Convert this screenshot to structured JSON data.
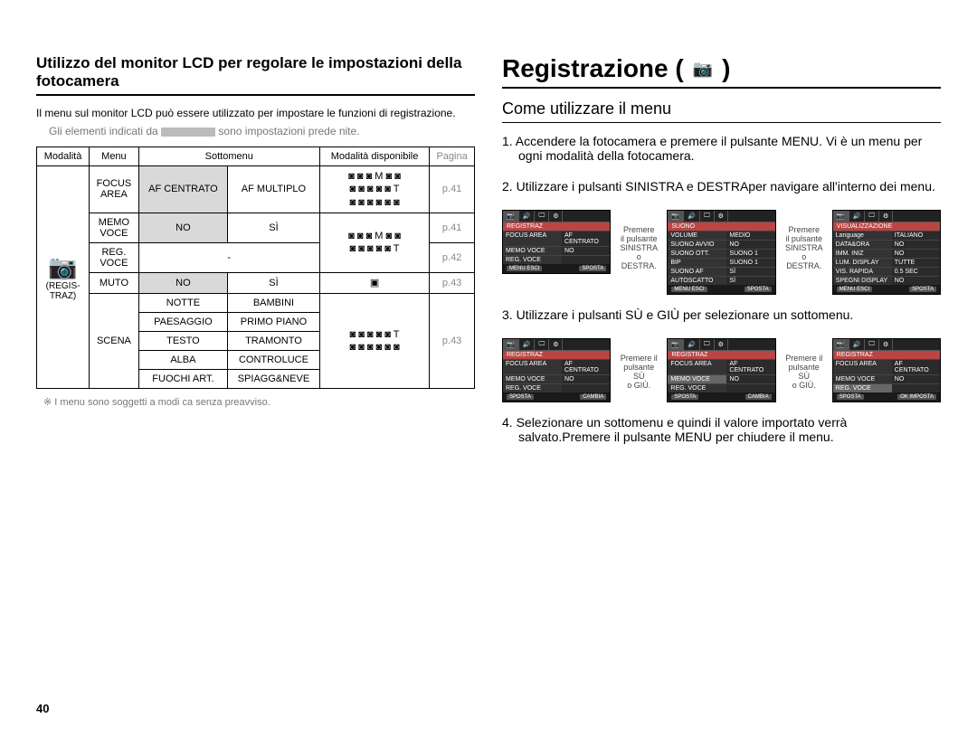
{
  "left": {
    "title": "Utilizzo del monitor LCD per regolare le impostazioni della fotocamera",
    "intro": "Il menu sul monitor LCD può essere utilizzato per impostare le funzioni di registrazione.",
    "note_prefix": "Gli elementi indicati da",
    "note_suffix": "sono impostazioni prede nite.",
    "headers": {
      "modalita": "Modalità",
      "menu": "Menu",
      "sottomenu": "Sottomenu",
      "disponibile": "Modalità disponibile",
      "pagina": "Pagina"
    },
    "modalita_label": "(REGIS-\nTRAZ)",
    "rows": {
      "focus": {
        "menu": "FOCUS\nAREA",
        "s1": "AF CENTRATO",
        "s2": "AF MULTIPLO",
        "page": "p.41"
      },
      "memo": {
        "menu": "MEMO\nVOCE",
        "s1": "NO",
        "s2": "SÌ",
        "page": "p.41"
      },
      "reg": {
        "menu": "REG.\nVOCE",
        "s1": "-",
        "page": "p.42"
      },
      "muto": {
        "menu": "MUTO",
        "s1": "NO",
        "s2": "SÌ",
        "page": "p.43"
      },
      "scena": {
        "menu": "SCENA",
        "cells": [
          [
            "NOTTE",
            "BAMBINI"
          ],
          [
            "PAESAGGIO",
            "PRIMO PIANO"
          ],
          [
            "TESTO",
            "TRAMONTO"
          ],
          [
            "ALBA",
            "CONTROLUCE"
          ],
          [
            "FUOCHI ART.",
            "SPIAGG&NEVE"
          ]
        ],
        "page": "p.43"
      }
    },
    "footnote": "I menu sono soggetti a modi ca senza preavviso."
  },
  "right": {
    "title": "Registrazione (",
    "title_suffix": ")",
    "subtitle": "Come utilizzare il menu",
    "steps": [
      "1. Accendere la fotocamera e premere il pulsante MENU. Vi è un menu per ogni modalità della fotocamera.",
      "2. Utilizzare i pulsanti SINISTRA e  DESTRAper navigare all'interno dei menu.",
      "3. Utilizzare i pulsanti SÙ e GIÙ per selezionare un sottomenu.",
      "4. Selezionare un sottomenu e quindi il valore importato verrà salvato.Premere il pulsante MENU per chiudere il menu."
    ],
    "arrow1": "Premere\nil pulsante\nSINISTRA\no DESTRA.",
    "arrow2": "Premere\nil pulsante\nSINISTRA\no DESTRA.",
    "arrow3": "Premere il\npulsante SÙ\no GIÙ.",
    "arrow4": "Premere il\npulsante SÙ\no GIÙ.",
    "screens": {
      "reg": {
        "header": "REGISTRAZ",
        "rows": [
          [
            "FOCUS AREA",
            "AF CENTRATO"
          ],
          [
            "MEMO VOCE",
            "NO"
          ],
          [
            "REG. VOCE",
            ""
          ]
        ],
        "footer": [
          "MENU ESCI",
          "SPOSTA"
        ]
      },
      "suono": {
        "header": "SUONO",
        "rows": [
          [
            "VOLUME",
            "MEDIO"
          ],
          [
            "SUONO AVVIO",
            "NO"
          ],
          [
            "SUONO OTT.",
            "SUONO 1"
          ],
          [
            "BIP",
            "SUONO 1"
          ],
          [
            "SUONO AF",
            "SÌ"
          ],
          [
            "AUTOSCATTO",
            "SÌ"
          ]
        ],
        "footer": [
          "MENU ESCI",
          "SPOSTA"
        ]
      },
      "vis": {
        "header": "VISUALIZZAZIONE",
        "rows": [
          [
            "Language",
            "ITALIANO"
          ],
          [
            "DATA&ORA",
            "NO"
          ],
          [
            "IMM. INIZ",
            "NO"
          ],
          [
            "LUM. DISPLAY",
            "TUTTE"
          ],
          [
            "VIS. RAPIDA",
            "0.5 SEC"
          ],
          [
            "SPEGNI DISPLAY",
            "NO"
          ]
        ],
        "footer": [
          "MENU ESCI",
          "SPOSTA"
        ]
      },
      "reg2": {
        "header": "REGISTRAZ",
        "rows": [
          [
            "FOCUS AREA",
            "AF CENTRATO"
          ],
          [
            "MEMO VOCE",
            "NO"
          ],
          [
            "REG. VOCE",
            ""
          ]
        ],
        "footer": [
          "SPOSTA",
          "CAMBIA"
        ]
      },
      "reg3": {
        "header": "REGISTRAZ",
        "rows": [
          [
            "FOCUS AREA",
            "AF CENTRATO"
          ],
          [
            "MEMO VOCE",
            "NO"
          ],
          [
            "REG. VOCE",
            ""
          ]
        ],
        "footer": [
          "SPOSTA",
          "CAMBIA"
        ],
        "hl": 1
      },
      "reg4": {
        "header": "REGISTRAZ",
        "rows": [
          [
            "FOCUS AREA",
            "AF CENTRATO"
          ],
          [
            "MEMO VOCE",
            "NO"
          ],
          [
            "REG. VOCE",
            ""
          ]
        ],
        "footer": [
          "SPOSTA",
          "OK IMPOSTA"
        ],
        "hl": 2
      }
    }
  },
  "page_number": "40",
  "mode_icons_full": "◙ ◙ ◙ M ◙ ◙\n◙ ◙ ◙ ◙ ◙ T\n◙ ◙ ◙ ◙ ◙ ◙",
  "mode_icons_2row": "◙ ◙ ◙ M ◙ ◙\n◙ ◙ ◙ ◙ ◙ T",
  "mode_icons_scene": "◙ ◙ ◙ ◙ ◙ T\n◙ ◙ ◙ ◙ ◙ ◙",
  "mode_icons_muto": "▣"
}
